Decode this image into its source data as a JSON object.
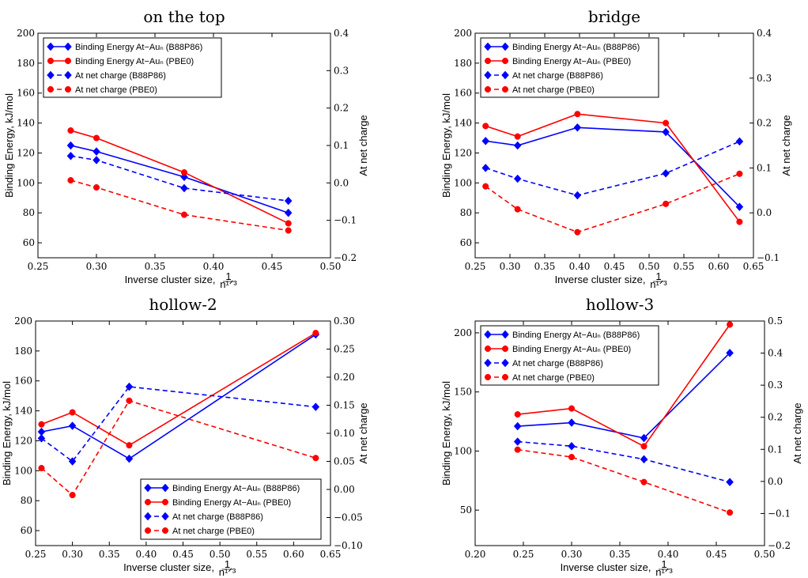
{
  "figure": {
    "colors": {
      "blue": "#0000ff",
      "red": "#ff0000"
    }
  },
  "chart_data": [
    {
      "type": "line",
      "title": "on the top",
      "xlabel": "Inverse cluster size,",
      "xlabel_frac_num": "1",
      "xlabel_frac_den": "n¹ᐟ³",
      "ylabel": "Binding Energy, kJ/mol",
      "y2label": "At net charge",
      "xlim": [
        0.25,
        0.5
      ],
      "ylim": [
        50,
        200
      ],
      "y2lim": [
        -0.2,
        0.4
      ],
      "xticks": [
        "0.25",
        "0.30",
        "0.35",
        "0.40",
        "0.45",
        "0.50"
      ],
      "xtick_values": [
        0.25,
        0.3,
        0.35,
        0.4,
        0.45,
        0.5
      ],
      "yticks": [
        "60",
        "80",
        "100",
        "120",
        "140",
        "160",
        "180",
        "200"
      ],
      "ytick_values": [
        60,
        80,
        100,
        120,
        140,
        160,
        180,
        200
      ],
      "y2ticks": [
        "−0.2",
        "−0.1",
        "0.0",
        "0.1",
        "0.2",
        "0.3",
        "0.4"
      ],
      "y2tick_values": [
        -0.2,
        -0.1,
        0.0,
        0.1,
        0.2,
        0.3,
        0.4
      ],
      "legend": "top-left",
      "series": [
        {
          "name": "Binding Energy At−Auₙ (B88P86)",
          "axis": "left",
          "color": "blue",
          "dashed": false,
          "marker": "diamond",
          "x": [
            0.278,
            0.3,
            0.375,
            0.464
          ],
          "y": [
            125,
            121,
            104,
            80
          ]
        },
        {
          "name": "Binding Energy At−Auₙ (PBE0)",
          "axis": "left",
          "color": "red",
          "dashed": false,
          "marker": "circle",
          "x": [
            0.278,
            0.3,
            0.375,
            0.464
          ],
          "y": [
            135,
            130,
            107,
            73
          ]
        },
        {
          "name": "At net charge (B88P86)",
          "axis": "right",
          "color": "blue",
          "dashed": true,
          "marker": "diamond",
          "x": [
            0.278,
            0.3,
            0.375,
            0.464
          ],
          "y": [
            0.072,
            0.061,
            -0.014,
            -0.048
          ]
        },
        {
          "name": "At net charge (PBE0)",
          "axis": "right",
          "color": "red",
          "dashed": true,
          "marker": "circle",
          "x": [
            0.278,
            0.3,
            0.375,
            0.464
          ],
          "y": [
            0.007,
            -0.012,
            -0.085,
            -0.127
          ]
        }
      ]
    },
    {
      "type": "line",
      "title": "bridge",
      "xlabel": "Inverse cluster size,",
      "xlabel_frac_num": "1",
      "xlabel_frac_den": "n¹ᐟ³",
      "ylabel": "Binding Energy, kJ/mol",
      "y2label": "At net charge",
      "xlim": [
        0.25,
        0.65
      ],
      "ylim": [
        50,
        200
      ],
      "y2lim": [
        -0.1,
        0.4
      ],
      "xticks": [
        "0.25",
        "0.30",
        "0.35",
        "0.40",
        "0.45",
        "0.50",
        "0.55",
        "0.60",
        "0.65"
      ],
      "xtick_values": [
        0.25,
        0.3,
        0.35,
        0.4,
        0.45,
        0.5,
        0.55,
        0.6,
        0.65
      ],
      "yticks": [
        "60",
        "80",
        "100",
        "120",
        "140",
        "160",
        "180",
        "200"
      ],
      "ytick_values": [
        60,
        80,
        100,
        120,
        140,
        160,
        180,
        200
      ],
      "y2ticks": [
        "−0.1",
        "0.0",
        "0.1",
        "0.2",
        "0.3",
        "0.4"
      ],
      "y2tick_values": [
        -0.1,
        0.0,
        0.1,
        0.2,
        0.3,
        0.4
      ],
      "legend": "top-left",
      "series": [
        {
          "name": "Binding Energy At−Auₙ (B88P86)",
          "axis": "left",
          "color": "blue",
          "dashed": false,
          "marker": "diamond",
          "x": [
            0.265,
            0.311,
            0.397,
            0.524,
            0.63
          ],
          "y": [
            128,
            125,
            137,
            134,
            84
          ]
        },
        {
          "name": "Binding Energy At−Auₙ (PBE0)",
          "axis": "left",
          "color": "red",
          "dashed": false,
          "marker": "circle",
          "x": [
            0.265,
            0.311,
            0.397,
            0.524,
            0.63
          ],
          "y": [
            138,
            131,
            146,
            140,
            74
          ]
        },
        {
          "name": "At net charge (B88P86)",
          "axis": "right",
          "color": "blue",
          "dashed": true,
          "marker": "diamond",
          "x": [
            0.265,
            0.311,
            0.397,
            0.524,
            0.63
          ],
          "y": [
            0.1,
            0.076,
            0.039,
            0.088,
            0.159
          ]
        },
        {
          "name": "At net charge (PBE0)",
          "axis": "right",
          "color": "red",
          "dashed": true,
          "marker": "circle",
          "x": [
            0.265,
            0.311,
            0.397,
            0.524,
            0.63
          ],
          "y": [
            0.059,
            0.008,
            -0.043,
            0.02,
            0.087
          ]
        }
      ]
    },
    {
      "type": "line",
      "title": "hollow-2",
      "xlabel": "Inverse cluster size,",
      "xlabel_frac_num": "1",
      "xlabel_frac_den": "n¹ᐟ³",
      "ylabel": "Binding Energy, kJ/mol",
      "y2label": "At net charge",
      "xlim": [
        0.25,
        0.65
      ],
      "ylim": [
        50,
        200
      ],
      "y2lim": [
        -0.1,
        0.3
      ],
      "xticks": [
        "0.25",
        "0.30",
        "0.35",
        "0.40",
        "0.45",
        "0.50",
        "0.55",
        "0.60",
        "0.65"
      ],
      "xtick_values": [
        0.25,
        0.3,
        0.35,
        0.4,
        0.45,
        0.5,
        0.55,
        0.6,
        0.65
      ],
      "yticks": [
        "60",
        "80",
        "100",
        "120",
        "140",
        "160",
        "180",
        "200"
      ],
      "ytick_values": [
        60,
        80,
        100,
        120,
        140,
        160,
        180,
        200
      ],
      "y2ticks": [
        "−0.10",
        "−0.05",
        "0.00",
        "0.05",
        "0.10",
        "0.15",
        "0.20",
        "0.25",
        "0.30"
      ],
      "y2tick_values": [
        -0.1,
        -0.05,
        0.0,
        0.05,
        0.1,
        0.15,
        0.2,
        0.25,
        0.3
      ],
      "legend": "bottom-right",
      "series": [
        {
          "name": "Binding Energy At−Auₙ (B88P86)",
          "axis": "left",
          "color": "blue",
          "dashed": false,
          "marker": "diamond",
          "x": [
            0.258,
            0.3,
            0.377,
            0.63
          ],
          "y": [
            126,
            130,
            108,
            191
          ]
        },
        {
          "name": "Binding Energy At−Auₙ (PBE0)",
          "axis": "left",
          "color": "red",
          "dashed": false,
          "marker": "circle",
          "x": [
            0.258,
            0.3,
            0.377,
            0.63
          ],
          "y": [
            131,
            139,
            117,
            192
          ]
        },
        {
          "name": "At net charge (B88P86)",
          "axis": "right",
          "color": "blue",
          "dashed": true,
          "marker": "diamond",
          "x": [
            0.258,
            0.3,
            0.377,
            0.63
          ],
          "y": [
            0.091,
            0.05,
            0.183,
            0.147
          ]
        },
        {
          "name": "At net charge (PBE0)",
          "axis": "right",
          "color": "red",
          "dashed": true,
          "marker": "circle",
          "x": [
            0.258,
            0.3,
            0.377,
            0.63
          ],
          "y": [
            0.038,
            -0.01,
            0.158,
            0.056
          ]
        }
      ]
    },
    {
      "type": "line",
      "title": "hollow-3",
      "xlabel": "Inverse cluster size,",
      "xlabel_frac_num": "1",
      "xlabel_frac_den": "n¹ᐟ³",
      "ylabel": "Binding Energy, kJ/mol",
      "y2label": "At net charge",
      "xlim": [
        0.2,
        0.5
      ],
      "ylim": [
        20,
        210
      ],
      "y2lim": [
        -0.2,
        0.5
      ],
      "xticks": [
        "0.20",
        "0.25",
        "0.30",
        "0.35",
        "0.40",
        "0.45",
        "0.50"
      ],
      "xtick_values": [
        0.2,
        0.25,
        0.3,
        0.35,
        0.4,
        0.45,
        0.5
      ],
      "yticks": [
        "50",
        "100",
        "150",
        "200"
      ],
      "ytick_values": [
        50,
        100,
        150,
        200
      ],
      "y2ticks": [
        "−0.2",
        "−0.1",
        "0.0",
        "0.1",
        "0.2",
        "0.3",
        "0.4",
        "0.5"
      ],
      "y2tick_values": [
        -0.2,
        -0.1,
        0.0,
        0.1,
        0.2,
        0.3,
        0.4,
        0.5
      ],
      "legend": "top-left",
      "series": [
        {
          "name": "Binding Energy At−Auₙ (B88P86)",
          "axis": "left",
          "color": "blue",
          "dashed": false,
          "marker": "diamond",
          "x": [
            0.244,
            0.3,
            0.375,
            0.464
          ],
          "y": [
            121,
            124,
            111,
            183
          ]
        },
        {
          "name": "Binding Energy At−Auₙ (PBE0)",
          "axis": "left",
          "color": "red",
          "dashed": false,
          "marker": "circle",
          "x": [
            0.244,
            0.3,
            0.375,
            0.464
          ],
          "y": [
            131,
            136,
            104,
            207
          ]
        },
        {
          "name": "At net charge (B88P86)",
          "axis": "right",
          "color": "blue",
          "dashed": true,
          "marker": "diamond",
          "x": [
            0.244,
            0.3,
            0.375,
            0.464
          ],
          "y": [
            0.124,
            0.11,
            0.069,
            -0.002
          ]
        },
        {
          "name": "At net charge (PBE0)",
          "axis": "right",
          "color": "red",
          "dashed": true,
          "marker": "circle",
          "x": [
            0.244,
            0.3,
            0.375,
            0.464
          ],
          "y": [
            0.099,
            0.076,
            -0.002,
            -0.097
          ]
        }
      ]
    }
  ]
}
